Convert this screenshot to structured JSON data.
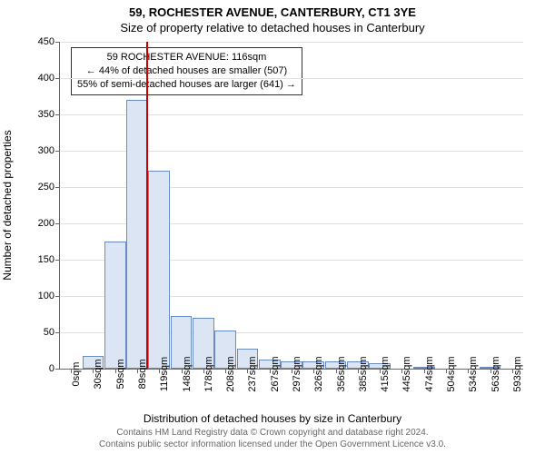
{
  "header": {
    "title": "59, ROCHESTER AVENUE, CANTERBURY, CT1 3YE",
    "subtitle": "Size of property relative to detached houses in Canterbury"
  },
  "chart": {
    "type": "histogram",
    "ylabel": "Number of detached properties",
    "xlabel": "Distribution of detached houses by size in Canterbury",
    "ylim": [
      0,
      450
    ],
    "ytick_step": 50,
    "yticks": [
      0,
      50,
      100,
      150,
      200,
      250,
      300,
      350,
      400,
      450
    ],
    "xticks": [
      "0sqm",
      "30sqm",
      "59sqm",
      "89sqm",
      "119sqm",
      "148sqm",
      "178sqm",
      "208sqm",
      "237sqm",
      "267sqm",
      "297sqm",
      "326sqm",
      "356sqm",
      "385sqm",
      "415sqm",
      "445sqm",
      "474sqm",
      "504sqm",
      "534sqm",
      "563sqm",
      "593sqm"
    ],
    "values": [
      0,
      18,
      175,
      370,
      272,
      72,
      70,
      52,
      28,
      12,
      10,
      10,
      10,
      10,
      8,
      0,
      3,
      0,
      0,
      3
    ],
    "bar_fill": "#dbe5f3",
    "bar_border": "#6a8cc4",
    "grid_color": "#e0e0e0",
    "axis_color": "#666666",
    "background": "#ffffff",
    "marker": {
      "position_index": 3.9,
      "color": "#cc0000"
    },
    "annotation": {
      "line1": "59 ROCHESTER AVENUE: 116sqm",
      "line2": "← 44% of detached houses are smaller (507)",
      "line3": "55% of semi-detached houses are larger (641) →",
      "border": "#333333",
      "background": "#ffffff"
    }
  },
  "footer": {
    "line1": "Contains HM Land Registry data © Crown copyright and database right 2024.",
    "line2": "Contains public sector information licensed under the Open Government Licence v3.0."
  }
}
